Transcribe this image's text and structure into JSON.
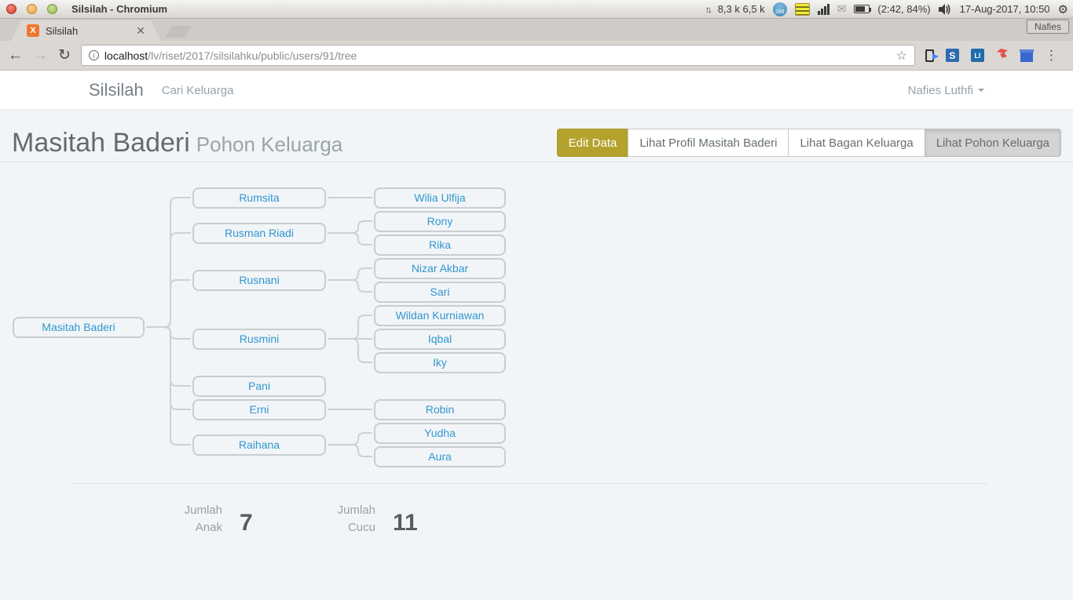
{
  "system_bar": {
    "window_title": "Silsilah - Chromium",
    "net_traffic": "8,3 k 6,5 k",
    "indicator_badge": "289",
    "battery_text": "(2:42, 84%)",
    "clock": "17-Aug-2017, 10:50",
    "session_label": "Nafies"
  },
  "browser": {
    "tab_title": "Silsilah",
    "favicon_letter": "X",
    "url_host": "localhost",
    "url_path": "/lv/riset/2017/silsilahku/public/users/91/tree"
  },
  "navbar": {
    "brand": "Silsilah",
    "menu_item": "Cari Keluarga",
    "user_menu": "Nafies Luthfi"
  },
  "page": {
    "title": "Masitah Baderi",
    "subtitle": "Pohon Keluarga",
    "actions": [
      {
        "label": "Edit Data",
        "style": "primary"
      },
      {
        "label": "Lihat Profil Masitah Baderi",
        "style": "default"
      },
      {
        "label": "Lihat Bagan Keluarga",
        "style": "default"
      },
      {
        "label": "Lihat Pohon Keluarga",
        "style": "active"
      }
    ],
    "stats": [
      {
        "label": "Jumlah\nAnak",
        "value": "7"
      },
      {
        "label": "Jumlah\nCucu",
        "value": "11"
      }
    ]
  },
  "tree": {
    "root": {
      "name": "Masitah Baderi",
      "children": [
        {
          "name": "Rumsita",
          "children": [
            {
              "name": "Wilia Ulfija"
            }
          ]
        },
        {
          "name": "Rusman Riadi",
          "children": [
            {
              "name": "Rony"
            },
            {
              "name": "Rika"
            }
          ]
        },
        {
          "name": "Rusnani",
          "children": [
            {
              "name": "Nizar Akbar"
            },
            {
              "name": "Sari"
            }
          ]
        },
        {
          "name": "Rusmini",
          "children": [
            {
              "name": "Wildan Kurniawan"
            },
            {
              "name": "Iqbal"
            },
            {
              "name": "Iky"
            }
          ]
        },
        {
          "name": "Pani"
        },
        {
          "name": "Erni",
          "children": [
            {
              "name": "Robin"
            }
          ]
        },
        {
          "name": "Raihana",
          "children": [
            {
              "name": "Yudha"
            },
            {
              "name": "Aura"
            }
          ]
        }
      ]
    }
  },
  "colors": {
    "link_blue": "#3097d1",
    "primary_button": "#b4a22c",
    "page_background": "#f2f5f7",
    "node_border": "#c8cdd1"
  }
}
